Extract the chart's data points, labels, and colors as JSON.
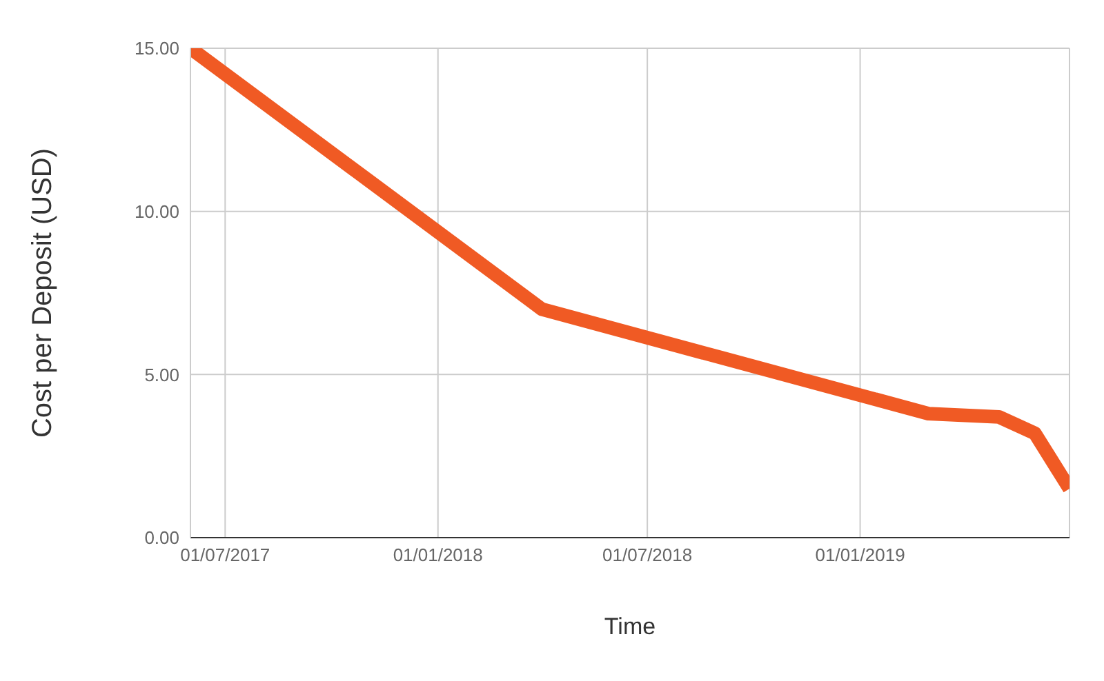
{
  "chart_data": {
    "type": "line",
    "xlabel": "Time",
    "ylabel": "Cost per Deposit (USD)",
    "x": [
      "2017-06-01",
      "2018-04-01",
      "2019-03-01",
      "2019-05-01",
      "2019-06-01",
      "2019-07-01"
    ],
    "series": [
      {
        "color": "#f05a24",
        "values": [
          15.0,
          7.0,
          3.8,
          3.7,
          3.2,
          1.5
        ]
      }
    ],
    "xlim": [
      "2017-06-01",
      "2019-07-01"
    ],
    "xticks": [
      {
        "value": "2017-07-01",
        "label": "01/07/2017"
      },
      {
        "value": "2018-01-01",
        "label": "01/01/2018"
      },
      {
        "value": "2018-07-01",
        "label": "01/07/2018"
      },
      {
        "value": "2019-01-01",
        "label": "01/01/2019"
      }
    ],
    "ylim": [
      0,
      15
    ],
    "yticks": [
      {
        "value": 0,
        "label": "0.00"
      },
      {
        "value": 5,
        "label": "5.00"
      },
      {
        "value": 10,
        "label": "10.00"
      },
      {
        "value": 15,
        "label": "15.00"
      }
    ],
    "grid": true,
    "legend": false,
    "marker": "none",
    "line_style": "solid"
  }
}
